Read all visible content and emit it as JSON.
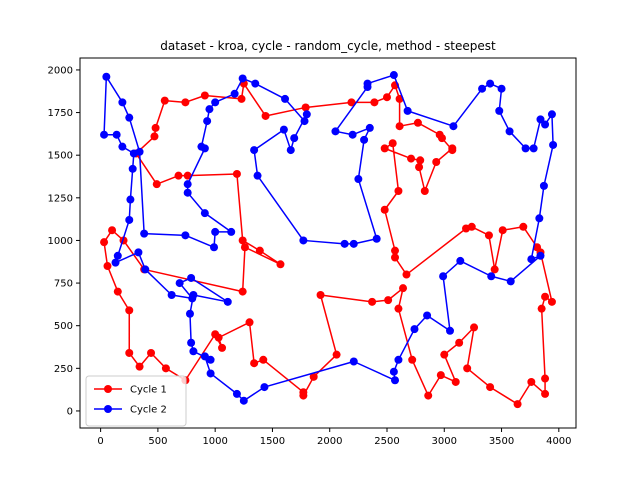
{
  "chart_data": {
    "type": "line",
    "title": "dataset - kroa, cycle - random_cycle, method - steepest",
    "xlabel": "",
    "ylabel": "",
    "xlim": [
      -180,
      4150
    ],
    "ylim": [
      -100,
      2070
    ],
    "xticks": [
      0,
      500,
      1000,
      1500,
      2000,
      2500,
      3000,
      3500,
      4000
    ],
    "yticks": [
      0,
      250,
      500,
      750,
      1000,
      1250,
      1500,
      1750,
      2000
    ],
    "grid": false,
    "legend_position": "bottom-left",
    "series": [
      {
        "name": "Cycle 1",
        "color": "#ff0000",
        "marker": "circle",
        "points": [
          [
            1250,
            1920
          ],
          [
            1230,
            1830
          ],
          [
            910,
            1850
          ],
          [
            740,
            1810
          ],
          [
            560,
            1820
          ],
          [
            480,
            1660
          ],
          [
            470,
            1610
          ],
          [
            310,
            1510
          ],
          [
            490,
            1330
          ],
          [
            680,
            1380
          ],
          [
            760,
            1380
          ],
          [
            1190,
            1390
          ],
          [
            1240,
            1000
          ],
          [
            1390,
            940
          ],
          [
            1570,
            860
          ],
          [
            1260,
            960
          ],
          [
            1240,
            700
          ],
          [
            380,
            830
          ],
          [
            200,
            1000
          ],
          [
            100,
            1060
          ],
          [
            30,
            990
          ],
          [
            60,
            850
          ],
          [
            150,
            700
          ],
          [
            250,
            590
          ],
          [
            250,
            340
          ],
          [
            340,
            260
          ],
          [
            440,
            340
          ],
          [
            570,
            250
          ],
          [
            740,
            180
          ],
          [
            1000,
            450
          ],
          [
            1060,
            370
          ],
          [
            1030,
            430
          ],
          [
            1300,
            520
          ],
          [
            1340,
            280
          ],
          [
            1420,
            300
          ],
          [
            1770,
            110
          ],
          [
            1770,
            90
          ],
          [
            1860,
            200
          ],
          [
            2060,
            330
          ],
          [
            1920,
            680
          ],
          [
            2370,
            640
          ],
          [
            2510,
            650
          ],
          [
            2640,
            720
          ],
          [
            2600,
            600
          ],
          [
            2720,
            300
          ],
          [
            2860,
            90
          ],
          [
            2970,
            210
          ],
          [
            3100,
            170
          ],
          [
            3000,
            330
          ],
          [
            3130,
            400
          ],
          [
            3260,
            490
          ],
          [
            3200,
            250
          ],
          [
            3400,
            140
          ],
          [
            3640,
            40
          ],
          [
            3760,
            170
          ],
          [
            3880,
            100
          ],
          [
            3880,
            190
          ],
          [
            3850,
            600
          ],
          [
            3880,
            670
          ],
          [
            3940,
            640
          ],
          [
            3840,
            930
          ],
          [
            3810,
            960
          ],
          [
            3690,
            1080
          ],
          [
            3510,
            1060
          ],
          [
            3440,
            830
          ],
          [
            3390,
            1030
          ],
          [
            3240,
            1080
          ],
          [
            3190,
            1070
          ],
          [
            2670,
            800
          ],
          [
            2570,
            900
          ],
          [
            2570,
            940
          ],
          [
            2480,
            1180
          ],
          [
            2600,
            1290
          ],
          [
            2550,
            1570
          ],
          [
            2480,
            1540
          ],
          [
            2710,
            1480
          ],
          [
            2790,
            1470
          ],
          [
            2780,
            1430
          ],
          [
            2830,
            1290
          ],
          [
            2930,
            1460
          ],
          [
            3070,
            1540
          ],
          [
            3070,
            1530
          ],
          [
            2980,
            1600
          ],
          [
            2960,
            1620
          ],
          [
            2770,
            1690
          ],
          [
            2610,
            1670
          ],
          [
            2610,
            1830
          ],
          [
            2570,
            1910
          ],
          [
            2500,
            1840
          ],
          [
            2390,
            1810
          ],
          [
            2190,
            1810
          ],
          [
            1790,
            1780
          ],
          [
            1440,
            1730
          ]
        ],
        "closed": true
      },
      {
        "name": "Cycle 2",
        "color": "#0000ff",
        "marker": "circle",
        "points": [
          [
            1240,
            1950
          ],
          [
            1350,
            1920
          ],
          [
            1610,
            1830
          ],
          [
            1780,
            1700
          ],
          [
            1800,
            1740
          ],
          [
            1690,
            1600
          ],
          [
            1660,
            1530
          ],
          [
            1600,
            1650
          ],
          [
            1340,
            1530
          ],
          [
            1370,
            1380
          ],
          [
            1770,
            1000
          ],
          [
            2130,
            980
          ],
          [
            2210,
            980
          ],
          [
            2410,
            1010
          ],
          [
            2250,
            1360
          ],
          [
            2300,
            1590
          ],
          [
            2350,
            1660
          ],
          [
            2200,
            1620
          ],
          [
            2050,
            1640
          ],
          [
            2330,
            1900
          ],
          [
            2330,
            1920
          ],
          [
            2560,
            1970
          ],
          [
            2680,
            1760
          ],
          [
            3080,
            1670
          ],
          [
            3330,
            1890
          ],
          [
            3400,
            1920
          ],
          [
            3500,
            1890
          ],
          [
            3480,
            1760
          ],
          [
            3570,
            1640
          ],
          [
            3710,
            1540
          ],
          [
            3780,
            1540
          ],
          [
            3840,
            1710
          ],
          [
            3880,
            1680
          ],
          [
            3940,
            1740
          ],
          [
            3950,
            1560
          ],
          [
            3870,
            1320
          ],
          [
            3830,
            1130
          ],
          [
            3760,
            890
          ],
          [
            3840,
            910
          ],
          [
            3580,
            760
          ],
          [
            3410,
            790
          ],
          [
            3140,
            880
          ],
          [
            2990,
            790
          ],
          [
            3050,
            470
          ],
          [
            2850,
            560
          ],
          [
            2740,
            480
          ],
          [
            2600,
            300
          ],
          [
            2560,
            230
          ],
          [
            2570,
            180
          ],
          [
            2210,
            290
          ],
          [
            1430,
            140
          ],
          [
            1250,
            60
          ],
          [
            1190,
            100
          ],
          [
            960,
            220
          ],
          [
            910,
            320
          ],
          [
            960,
            300
          ],
          [
            810,
            350
          ],
          [
            790,
            400
          ],
          [
            780,
            570
          ],
          [
            810,
            680
          ],
          [
            1110,
            640
          ],
          [
            790,
            780
          ],
          [
            690,
            750
          ],
          [
            800,
            660
          ],
          [
            620,
            680
          ],
          [
            390,
            830
          ],
          [
            330,
            930
          ],
          [
            130,
            870
          ],
          [
            150,
            910
          ],
          [
            250,
            1120
          ],
          [
            260,
            1240
          ],
          [
            280,
            1420
          ],
          [
            290,
            1510
          ],
          [
            190,
            1550
          ],
          [
            140,
            1620
          ],
          [
            30,
            1620
          ],
          [
            50,
            1960
          ],
          [
            190,
            1810
          ],
          [
            250,
            1720
          ],
          [
            340,
            1520
          ],
          [
            380,
            1040
          ],
          [
            740,
            1030
          ],
          [
            990,
            960
          ],
          [
            1000,
            1050
          ],
          [
            1140,
            1050
          ],
          [
            910,
            1160
          ],
          [
            760,
            1280
          ],
          [
            760,
            1330
          ],
          [
            910,
            1540
          ],
          [
            880,
            1550
          ],
          [
            930,
            1700
          ],
          [
            950,
            1770
          ],
          [
            1000,
            1810
          ],
          [
            1170,
            1860
          ]
        ],
        "closed": true
      }
    ]
  }
}
